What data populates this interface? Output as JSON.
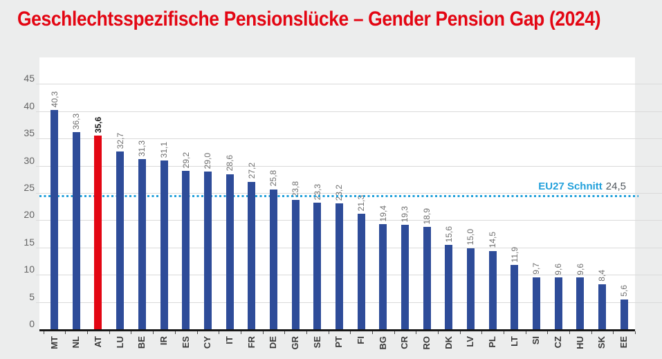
{
  "page": {
    "background": "#ECEDED"
  },
  "title": {
    "text": "Geschlechtsspezifische Pensionslücke – Gender Pension Gap (2024)",
    "color": "#E30613"
  },
  "chart_data": {
    "type": "bar",
    "title": "Geschlechtsspezifische Pensionslücke – Gender Pension Gap (2024)",
    "categories": [
      "MT",
      "NL",
      "AT",
      "LU",
      "BE",
      "IR",
      "ES",
      "CY",
      "IT",
      "FR",
      "DE",
      "GR",
      "SE",
      "PT",
      "FI",
      "BG",
      "CR",
      "RO",
      "DK",
      "LV",
      "PL",
      "LT",
      "SI",
      "CZ",
      "HU",
      "SK",
      "EE"
    ],
    "values": [
      40.3,
      36.3,
      35.6,
      32.7,
      31.3,
      31.1,
      29.2,
      29.0,
      28.6,
      27.2,
      25.8,
      23.8,
      23.3,
      23.2,
      21.3,
      19.4,
      19.3,
      18.9,
      15.6,
      15.0,
      14.5,
      11.9,
      9.7,
      9.6,
      9.6,
      8.4,
      5.6
    ],
    "value_labels": [
      "40,3",
      "36,3",
      "35,6",
      "32,7",
      "31,3",
      "31,1",
      "29,2",
      "29,0",
      "28,6",
      "27,2",
      "25,8",
      "23,8",
      "23,3",
      "23,2",
      "21,3",
      "19,4",
      "19,3",
      "18,9",
      "15,6",
      "15,0",
      "14,5",
      "11,9",
      "9,7",
      "9,6",
      "9,6",
      "8,4",
      "5,6"
    ],
    "bar_color": "#2E4C99",
    "highlight": {
      "category": "AT",
      "index": 2,
      "color": "#E30613"
    },
    "reference_line": {
      "value": 24.5,
      "label": "EU27 Schnitt",
      "value_label": "24,5",
      "color": "#21A0DB"
    },
    "y_ticks": [
      0,
      5,
      10,
      15,
      20,
      25,
      30,
      35,
      40,
      45
    ],
    "ylim": [
      0,
      50
    ],
    "grid": true,
    "xlabel": "",
    "ylabel": "",
    "legend": "none",
    "value_label_rotation": 90,
    "x_label_rotation": 90
  }
}
